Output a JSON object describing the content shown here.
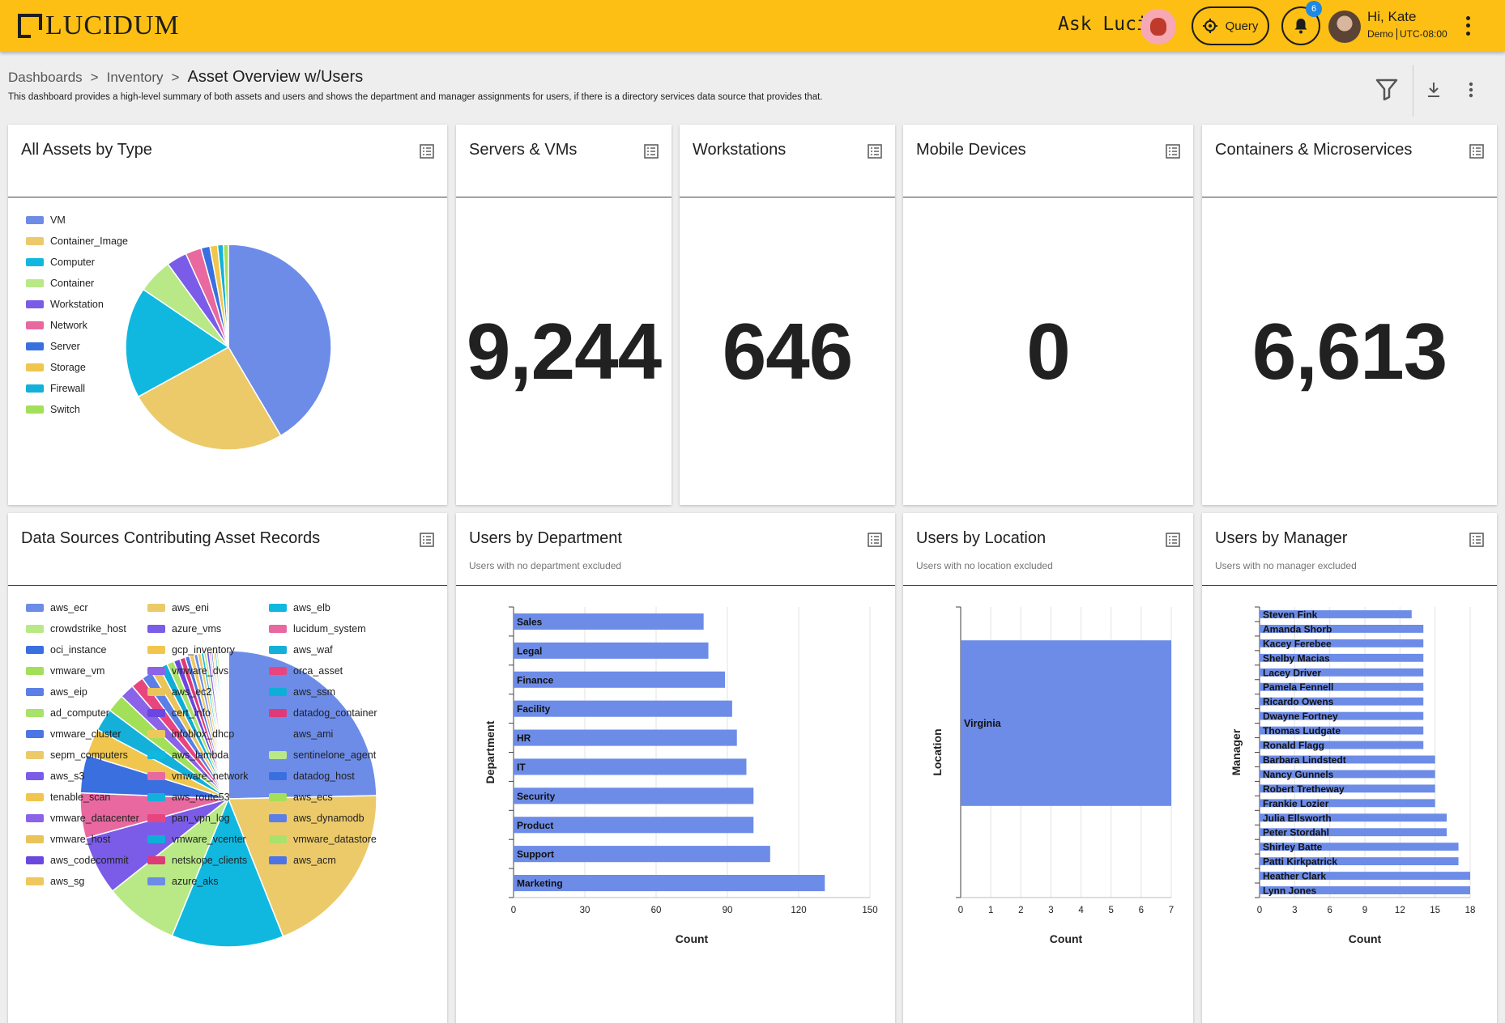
{
  "header": {
    "logo_text": "LUCIDUM",
    "ask_label": "Ask Luci:",
    "query_label": "Query",
    "notification_count": "6",
    "user_greeting": "Hi, Kate",
    "user_org": "Demo",
    "user_tz": "UTC-08:00"
  },
  "breadcrumb": {
    "items": [
      "Dashboards",
      "Inventory"
    ],
    "current": "Asset Overview w/Users",
    "sep": ">"
  },
  "description": "This dashboard provides a high-level summary of both assets and users and shows the department and manager assignments for users, if there is a directory services data source that provides that.",
  "cards": {
    "all_assets": {
      "title": "All Assets by Type"
    },
    "servers": {
      "title": "Servers & VMs",
      "value": "9,244"
    },
    "workstations": {
      "title": "Workstations",
      "value": "646"
    },
    "mobile": {
      "title": "Mobile Devices",
      "value": "0"
    },
    "containers": {
      "title": "Containers & Microservices",
      "value": "6,613"
    },
    "data_sources": {
      "title": "Data Sources Contributing Asset Records"
    },
    "by_department": {
      "title": "Users by Department",
      "subtitle": "Users with no department excluded"
    },
    "by_location": {
      "title": "Users by Location",
      "subtitle": "Users with no location excluded"
    },
    "by_manager": {
      "title": "Users by Manager",
      "subtitle": "Users with no manager excluded"
    }
  },
  "chart_data": [
    {
      "id": "assets_by_type",
      "type": "pie",
      "labels": [
        "VM",
        "Container_Image",
        "Computer",
        "Container",
        "Workstation",
        "Network",
        "Server",
        "Storage",
        "Firewall",
        "Switch"
      ],
      "values": [
        41.5,
        25.5,
        17.5,
        5.5,
        3.2,
        2.5,
        1.4,
        1.2,
        0.9,
        0.8
      ],
      "colors": [
        "#6d8ce8",
        "#ecca6a",
        "#10b8e0",
        "#b8e986",
        "#7a5ce8",
        "#e8689f",
        "#3a6fe0",
        "#f0c64e",
        "#14b0da",
        "#a3e05a"
      ]
    },
    {
      "id": "data_sources",
      "type": "pie",
      "labels": [
        "aws_ecr",
        "aws_eni",
        "aws_elb",
        "crowdstrike_host",
        "azure_vms",
        "lucidum_system",
        "oci_instance",
        "gcp_inventory",
        "aws_waf",
        "vmware_vm",
        "vmware_dvs",
        "orca_asset",
        "aws_eip",
        "aws_ec2",
        "aws_ssm",
        "ad_computer",
        "cert_info",
        "datadog_container",
        "vmware_cluster",
        "infoblox_dhcp",
        "aws_ami",
        "sepm_computers",
        "aws_lambda",
        "sentinelone_agent",
        "aws_s3",
        "vmware_network",
        "datadog_host",
        "tenable_scan",
        "aws_route53",
        "aws_ecs",
        "vmware_datacenter",
        "pan_vpn_log",
        "aws_dynamodb",
        "vmware_host",
        "vmware_vcenter",
        "vmware_datastore",
        "aws_codecommit",
        "netskope_clients",
        "aws_acm",
        "aws_sg",
        "azure_aks"
      ],
      "values": [
        25.0,
        19.6,
        12.4,
        8.2,
        6.5,
        5.0,
        4.2,
        3.0,
        2.5,
        2.0,
        1.6,
        1.4,
        1.2,
        1.0,
        0.9,
        0.8,
        0.7,
        0.6,
        0.5,
        0.5,
        0.4,
        0.4,
        0.3,
        0.3,
        0.3,
        0.2,
        0.2,
        0.2,
        0.2,
        0.2,
        0.1,
        0.1,
        0.1,
        0.1,
        0.1,
        0.1,
        0.1,
        0.1,
        0.1,
        0.1,
        0.1
      ],
      "colors": [
        "#6d8ce8",
        "#ecca6a",
        "#10b8e0",
        "#b8e986",
        "#7a5ce8",
        "#e8689f",
        "#3a6fe0",
        "#f0c64e",
        "#14b0da",
        "#a3e05a",
        "#8a63e8",
        "#e8457f",
        "#5b7fe6",
        "#e9c45a",
        "#0eaed8",
        "#a8e26a",
        "#6a48e0",
        "#de3a78",
        "#4d74e4",
        "#eec85c"
      ]
    },
    {
      "id": "users_by_department",
      "type": "bar",
      "orientation": "horizontal",
      "categories": [
        "Sales",
        "Legal",
        "Finance",
        "Facility",
        "HR",
        "IT",
        "Security",
        "Product",
        "Support",
        "Marketing"
      ],
      "values": [
        80,
        82,
        89,
        92,
        94,
        98,
        101,
        101,
        108,
        131
      ],
      "xlabel": "Count",
      "ylabel": "Department",
      "xlim": [
        0,
        150
      ],
      "xticks": [
        "0",
        "30",
        "60",
        "90",
        "120",
        "150"
      ],
      "color": "#6d8ce8"
    },
    {
      "id": "users_by_location",
      "type": "bar",
      "orientation": "horizontal",
      "categories": [
        "Virginia"
      ],
      "values": [
        7
      ],
      "xlabel": "Count",
      "ylabel": "Location",
      "xlim": [
        0,
        7
      ],
      "xticks": [
        "0",
        "1",
        "2",
        "3",
        "4",
        "5",
        "6",
        "7"
      ],
      "color": "#6d8ce8"
    },
    {
      "id": "users_by_manager",
      "type": "bar",
      "orientation": "horizontal",
      "categories": [
        "Steven Fink",
        "Amanda Shorb",
        "Kacey Ferebee",
        "Shelby Macias",
        "Lacey Driver",
        "Pamela Fennell",
        "Ricardo Owens",
        "Dwayne Fortney",
        "Thomas Ludgate",
        "Ronald Flagg",
        "Barbara Lindstedt",
        "Nancy Gunnels",
        "Robert Tretheway",
        "Frankie Lozier",
        "Julia Ellsworth",
        "Peter Stordahl",
        "Shirley Batte",
        "Patti Kirkpatrick",
        "Heather Clark",
        "Lynn Jones"
      ],
      "values": [
        13,
        14,
        14,
        14,
        14,
        14,
        14,
        14,
        14,
        14,
        15,
        15,
        15,
        15,
        16,
        16,
        17,
        17,
        18,
        18
      ],
      "xlabel": "Count",
      "ylabel": "Manager",
      "xlim": [
        0,
        18
      ],
      "xticks": [
        "0",
        "3",
        "6",
        "9",
        "12",
        "15",
        "18"
      ],
      "color": "#6d8ce8"
    }
  ]
}
